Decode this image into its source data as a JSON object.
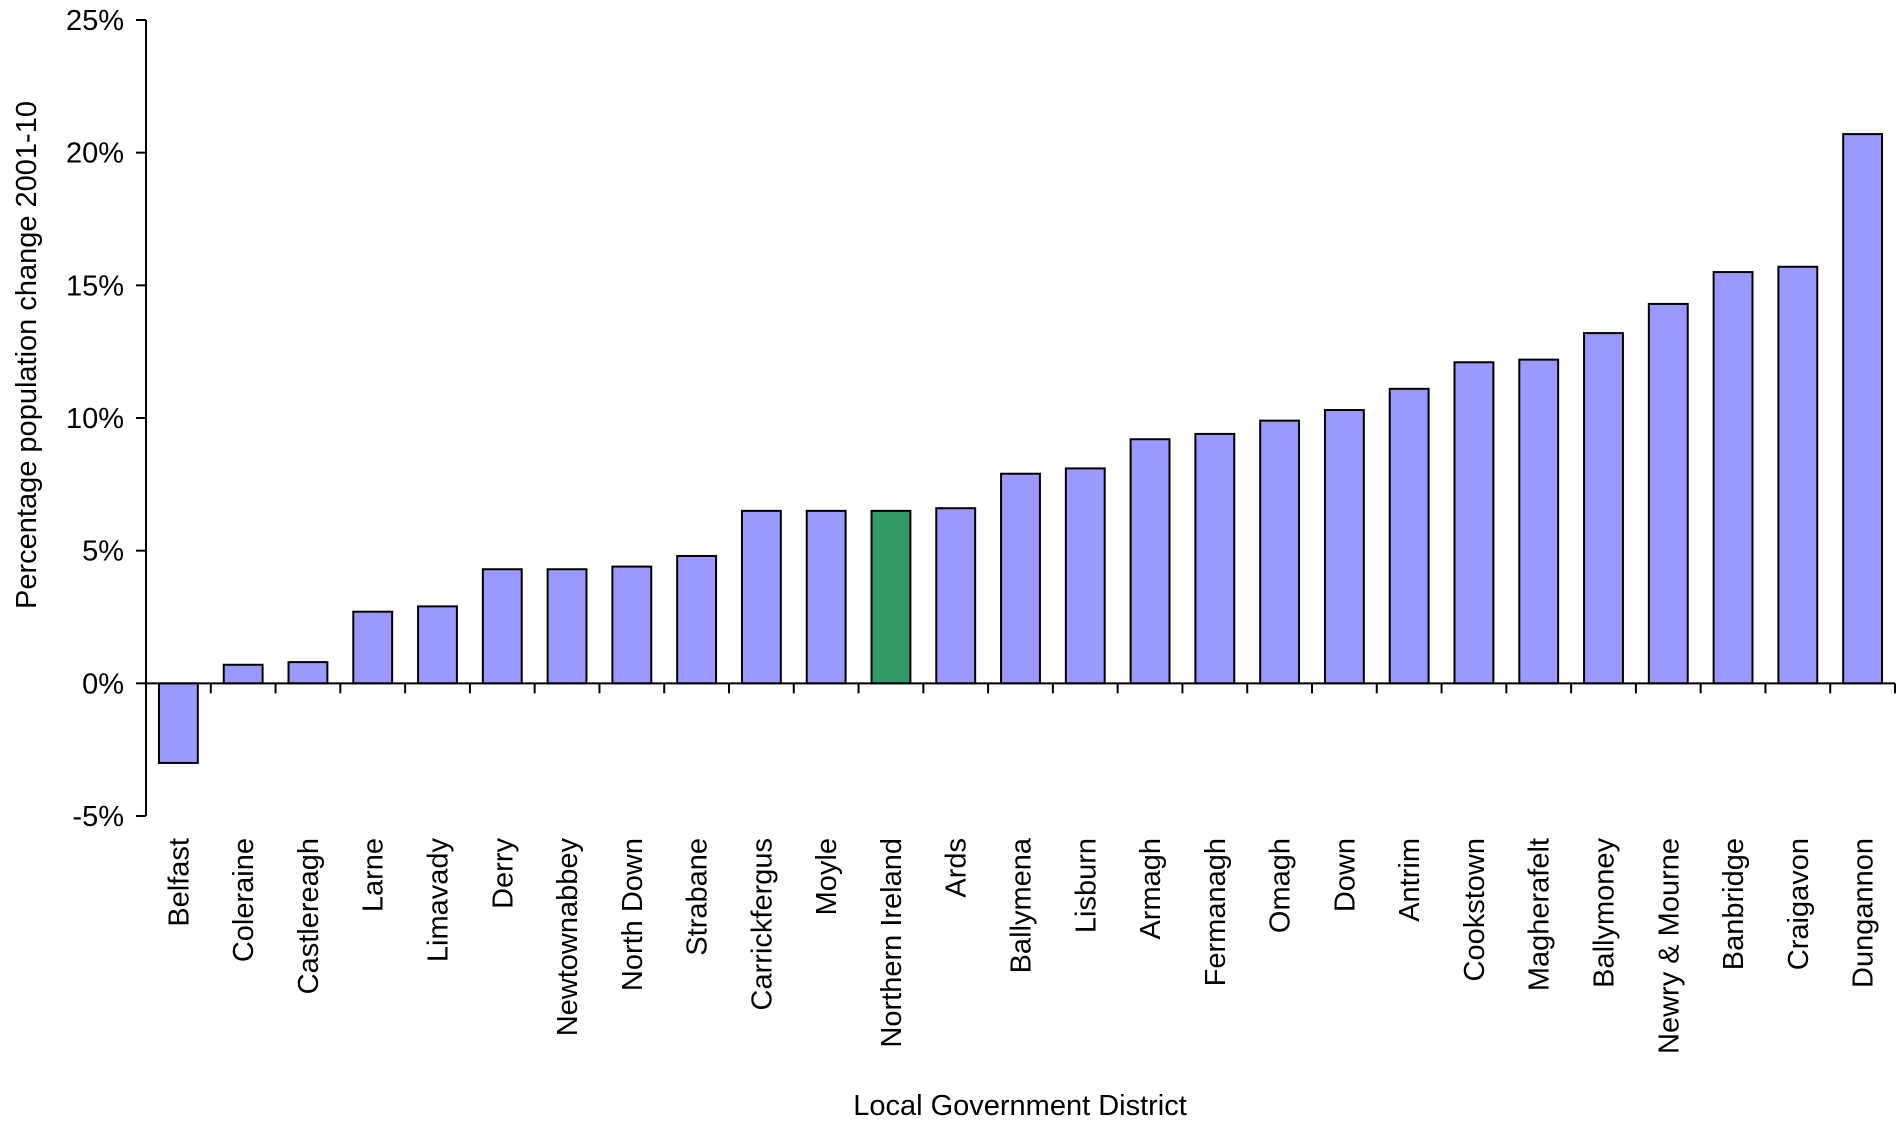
{
  "chart_data": {
    "type": "bar",
    "title": "",
    "xlabel": "Local Government District",
    "ylabel": "Percentage population change 2001-10",
    "ylim": [
      -5,
      25
    ],
    "yticks": [
      -5,
      0,
      5,
      10,
      15,
      20,
      25
    ],
    "ytick_labels": [
      "-5%",
      "0%",
      "5%",
      "10%",
      "15%",
      "20%",
      "25%"
    ],
    "grid": false,
    "legend": "none",
    "categories": [
      "Belfast",
      "Coleraine",
      "Castlereagh",
      "Larne",
      "Limavady",
      "Derry",
      "Newtownabbey",
      "North Down",
      "Strabane",
      "Carrickfergus",
      "Moyle",
      "Northern Ireland",
      "Ards",
      "Ballymena",
      "Lisburn",
      "Armagh",
      "Fermanagh",
      "Omagh",
      "Down",
      "Antrim",
      "Cookstown",
      "Magherafelt",
      "Ballymoney",
      "Newry & Mourne",
      "Banbridge",
      "Craigavon",
      "Dungannon"
    ],
    "values": [
      -3.0,
      0.7,
      0.8,
      2.7,
      2.9,
      4.3,
      4.3,
      4.4,
      4.8,
      6.5,
      6.5,
      6.5,
      6.6,
      7.9,
      8.1,
      9.2,
      9.4,
      9.9,
      10.3,
      11.1,
      12.1,
      12.2,
      13.2,
      14.3,
      15.5,
      15.7,
      20.7
    ],
    "colors": {
      "default": "#9999ff",
      "highlight": "#339966"
    },
    "highlight_category": "Northern Ireland"
  }
}
